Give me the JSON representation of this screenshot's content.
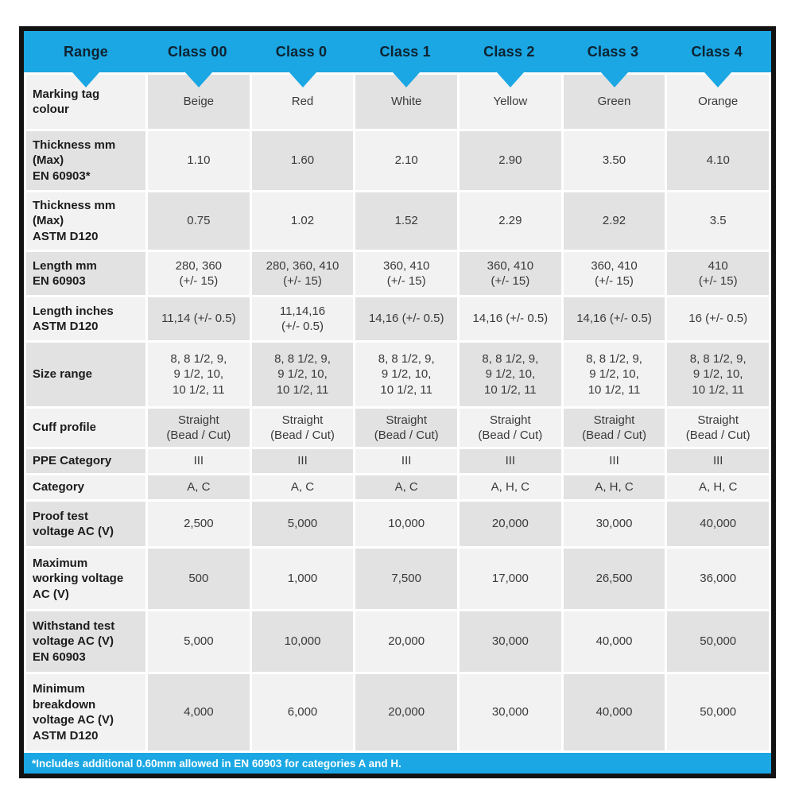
{
  "colors": {
    "accent_blue": "#1aa7e3",
    "header_text": "#0f2230",
    "cell_dark": "#e2e2e2",
    "cell_light": "#f2f2f2",
    "border_black": "#121212"
  },
  "header": {
    "columns": [
      "Range",
      "Class 00",
      "Class 0",
      "Class 1",
      "Class 2",
      "Class 3",
      "Class 4"
    ]
  },
  "table": {
    "rows": [
      {
        "label": "Marking tag\ncolour",
        "values": [
          "Beige",
          "Red",
          "White",
          "Yellow",
          "Green",
          "Orange"
        ]
      },
      {
        "label": "Thickness mm\n(Max)\nEN 60903*",
        "values": [
          "1.10",
          "1.60",
          "2.10",
          "2.90",
          "3.50",
          "4.10"
        ]
      },
      {
        "label": "Thickness mm\n(Max)\nASTM D120",
        "values": [
          "0.75",
          "1.02",
          "1.52",
          "2.29",
          "2.92",
          "3.5"
        ]
      },
      {
        "label": "Length mm\nEN 60903",
        "values": [
          "280, 360\n(+/- 15)",
          "280, 360, 410\n(+/- 15)",
          "360, 410\n(+/- 15)",
          "360, 410\n(+/- 15)",
          "360, 410\n(+/- 15)",
          "410\n(+/- 15)"
        ]
      },
      {
        "label": "Length inches\nASTM D120",
        "values": [
          "11,14 (+/- 0.5)",
          "11,14,16\n(+/- 0.5)",
          "14,16 (+/- 0.5)",
          "14,16 (+/- 0.5)",
          "14,16 (+/- 0.5)",
          "16 (+/- 0.5)"
        ]
      },
      {
        "label": "Size range",
        "values": [
          "8, 8 1/2, 9,\n9 1/2, 10,\n10 1/2, 11",
          "8, 8 1/2, 9,\n9 1/2, 10,\n10 1/2, 11",
          "8, 8 1/2, 9,\n9 1/2, 10,\n10 1/2, 11",
          "8, 8 1/2, 9,\n9 1/2, 10,\n10 1/2, 11",
          "8, 8 1/2, 9,\n9 1/2, 10,\n10 1/2, 11",
          "8, 8 1/2, 9,\n9 1/2, 10,\n10 1/2, 11"
        ]
      },
      {
        "label": "Cuff profile",
        "values": [
          "Straight\n(Bead / Cut)",
          "Straight\n(Bead / Cut)",
          "Straight\n(Bead / Cut)",
          "Straight\n(Bead / Cut)",
          "Straight\n(Bead / Cut)",
          "Straight\n(Bead / Cut)"
        ]
      },
      {
        "label": "PPE Category",
        "values": [
          "III",
          "III",
          "III",
          "III",
          "III",
          "III"
        ]
      },
      {
        "label": "Category",
        "values": [
          "A, C",
          "A, C",
          "A, C",
          "A, H, C",
          "A, H, C",
          "A, H, C"
        ]
      },
      {
        "label": "Proof test\nvoltage AC (V)",
        "values": [
          "2,500",
          "5,000",
          "10,000",
          "20,000",
          "30,000",
          "40,000"
        ]
      },
      {
        "label": "Maximum\nworking voltage\nAC (V)",
        "values": [
          "500",
          "1,000",
          "7,500",
          "17,000",
          "26,500",
          "36,000"
        ]
      },
      {
        "label": "Withstand test\nvoltage AC (V)\nEN 60903",
        "values": [
          "5,000",
          "10,000",
          "20,000",
          "30,000",
          "40,000",
          "50,000"
        ]
      },
      {
        "label": "Minimum\nbreakdown\nvoltage AC (V)\nASTM D120",
        "values": [
          "4,000",
          "6,000",
          "20,000",
          "30,000",
          "40,000",
          "50,000"
        ]
      }
    ]
  },
  "footer": {
    "note": "*Includes additional 0.60mm allowed in EN 60903 for categories A and H."
  }
}
